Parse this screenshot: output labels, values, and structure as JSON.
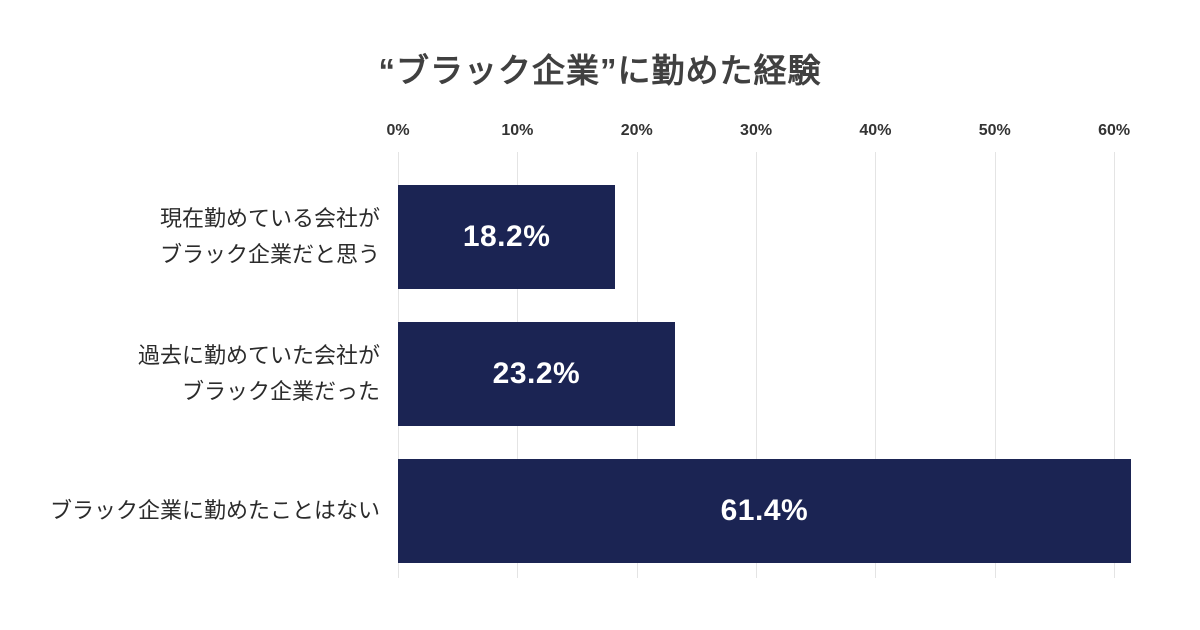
{
  "colors": {
    "background": "#ffffff",
    "bar": "#1b2453",
    "grid": "#e4e4e4",
    "title_text": "#404040",
    "tick_text": "#333333",
    "category_text": "#2b2b2b",
    "value_text": "#ffffff"
  },
  "chart_data": {
    "type": "bar",
    "orientation": "horizontal",
    "title": "“ブラック企業”に勤めた経験",
    "categories": [
      "現在勤めている会社がブラック企業だと思う",
      "過去に勤めていた会社がブラック企業だった",
      "ブラック企業に勤めたことはない"
    ],
    "category_lines": [
      [
        "現在勤めている会社が",
        "ブラック企業だと思う"
      ],
      [
        "過去に勤めていた会社が",
        "ブラック企業だった"
      ],
      [
        "ブラック企業に勤めたことはない"
      ]
    ],
    "values": [
      18.2,
      23.2,
      61.4
    ],
    "value_labels": [
      "18.2%",
      "23.2%",
      "61.4%"
    ],
    "x_tick_values": [
      0,
      10,
      20,
      30,
      40,
      50,
      60
    ],
    "x_tick_labels": [
      "0%",
      "10%",
      "20%",
      "30%",
      "40%",
      "50%",
      "60%"
    ],
    "xlim": [
      0,
      62
    ],
    "grid": true,
    "legend": "none",
    "xlabel": "",
    "ylabel": ""
  }
}
